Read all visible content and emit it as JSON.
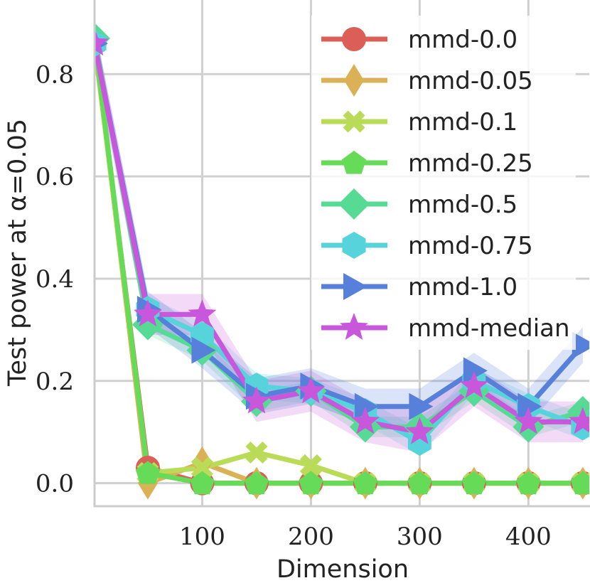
{
  "chart_data": {
    "type": "line",
    "title": "",
    "xlabel": "Dimension",
    "ylabel": "Test power at α=0.05",
    "xlim": [
      1,
      456
    ],
    "ylim": [
      -0.045,
      0.945
    ],
    "xticks": [
      100,
      200,
      300,
      400
    ],
    "yticks": [
      0.0,
      0.2,
      0.4,
      0.6,
      0.8
    ],
    "xtick_labels": [
      "100",
      "200",
      "300",
      "400"
    ],
    "ytick_labels": [
      "0.0",
      "0.2",
      "0.4",
      "0.6",
      "0.8"
    ],
    "grid": true,
    "legend_position": "top-right",
    "x": [
      1,
      50,
      100,
      150,
      200,
      250,
      300,
      350,
      400,
      450
    ],
    "series": [
      {
        "name": "mmd-0.0",
        "color": "#db5f57",
        "marker": "circle",
        "values": [
          0.86,
          0.03,
          0.0,
          0.0,
          0.0,
          0.0,
          0.0,
          0.0,
          0.0,
          0.0
        ]
      },
      {
        "name": "mmd-0.05",
        "color": "#dbb157",
        "marker": "thin_diamond",
        "values": [
          0.87,
          0.0,
          0.04,
          0.0,
          0.0,
          0.0,
          0.0,
          0.0,
          0.0,
          0.0
        ]
      },
      {
        "name": "mmd-0.1",
        "color": "#b9db57",
        "marker": "x",
        "values": [
          0.86,
          0.02,
          0.03,
          0.06,
          0.035,
          0.0,
          0.0,
          0.0,
          0.0,
          0.0
        ]
      },
      {
        "name": "mmd-0.25",
        "color": "#66db57",
        "marker": "pentagon",
        "values": [
          0.87,
          0.02,
          0.0,
          0.0,
          0.0,
          0.0,
          0.0,
          0.0,
          0.0,
          0.0
        ]
      },
      {
        "name": "mmd-0.5",
        "color": "#57db94",
        "marker": "diamond",
        "values": [
          0.87,
          0.31,
          0.26,
          0.16,
          0.18,
          0.11,
          0.11,
          0.18,
          0.11,
          0.14
        ],
        "band": 0.02
      },
      {
        "name": "mmd-0.75",
        "color": "#57d3db",
        "marker": "hexagon",
        "values": [
          0.86,
          0.34,
          0.29,
          0.19,
          0.18,
          0.14,
          0.08,
          0.2,
          0.15,
          0.11
        ],
        "band": 0.025
      },
      {
        "name": "mmd-1.0",
        "color": "#5780db",
        "marker": "triangle_right",
        "values": [
          0.86,
          0.34,
          0.26,
          0.17,
          0.19,
          0.15,
          0.15,
          0.22,
          0.15,
          0.27
        ],
        "band": 0.035
      },
      {
        "name": "mmd-median",
        "color": "#c957db",
        "marker": "star",
        "values": [
          0.86,
          0.33,
          0.33,
          0.16,
          0.18,
          0.12,
          0.1,
          0.19,
          0.12,
          0.12
        ],
        "band": 0.04
      }
    ]
  }
}
